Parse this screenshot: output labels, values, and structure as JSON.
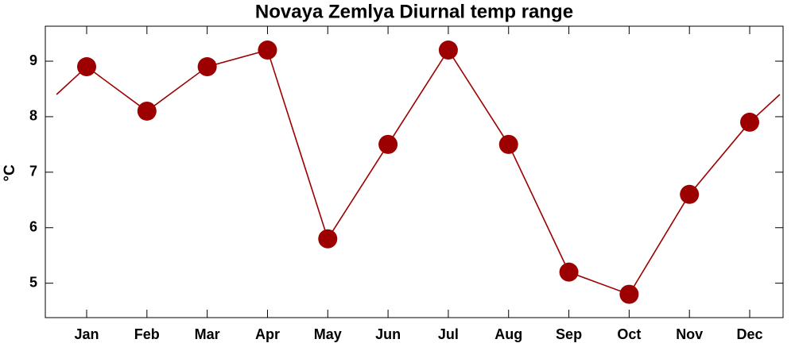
{
  "chart_data": {
    "type": "line",
    "title": "Novaya Zemlya Diurnal temp range",
    "y_label": "°C",
    "categories": [
      "Jan",
      "Feb",
      "Mar",
      "Apr",
      "May",
      "Jun",
      "Jul",
      "Aug",
      "Sep",
      "Oct",
      "Nov",
      "Dec"
    ],
    "series": [
      {
        "color": "#9c0000",
        "values": [
          8.9,
          8.1,
          8.9,
          9.2,
          5.8,
          7.5,
          9.2,
          7.5,
          5.2,
          4.8,
          6.6,
          7.9
        ]
      }
    ],
    "ylim": [
      4.38,
      9.63
    ],
    "yticks": [
      5,
      6,
      7,
      8,
      9
    ]
  }
}
